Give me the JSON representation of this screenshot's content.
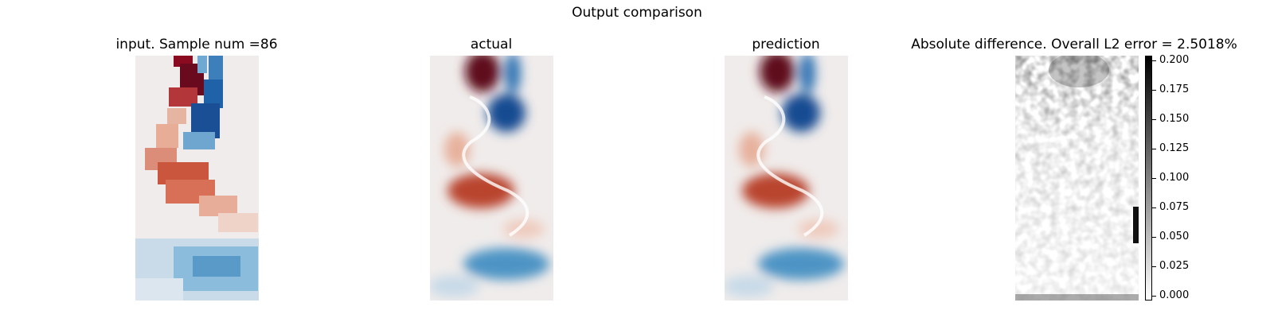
{
  "figure": {
    "suptitle": "Output comparison"
  },
  "panels": [
    {
      "title": "input. Sample num =86",
      "kind": "coarse-field"
    },
    {
      "title": "actual",
      "kind": "field"
    },
    {
      "title": "prediction",
      "kind": "field"
    },
    {
      "title": "Absolute difference. Overall L2 error = 2.5018%",
      "kind": "error"
    }
  ],
  "colors": {
    "positive": "#67001f",
    "negative": "#053061",
    "neutral": "#f0eceb"
  },
  "chart_data": [
    {
      "type": "heatmap",
      "title": "input. Sample num =86",
      "colormap": "RdBu_r",
      "resolution": "coarse"
    },
    {
      "type": "heatmap",
      "title": "actual",
      "colormap": "RdBu_r"
    },
    {
      "type": "heatmap",
      "title": "prediction",
      "colormap": "RdBu_r"
    },
    {
      "type": "heatmap",
      "title": "Absolute difference. Overall L2 error = 2.5018%",
      "colormap": "gray_r",
      "colorbar": {
        "range": [
          0.0,
          0.2
        ],
        "ticks": [
          0.2,
          0.175,
          0.15,
          0.125,
          0.1,
          0.075,
          0.05,
          0.025,
          0.0
        ],
        "tick_labels": [
          "0.200",
          "0.175",
          "0.150",
          "0.125",
          "0.100",
          "0.075",
          "0.050",
          "0.025",
          "0.000"
        ]
      }
    }
  ]
}
